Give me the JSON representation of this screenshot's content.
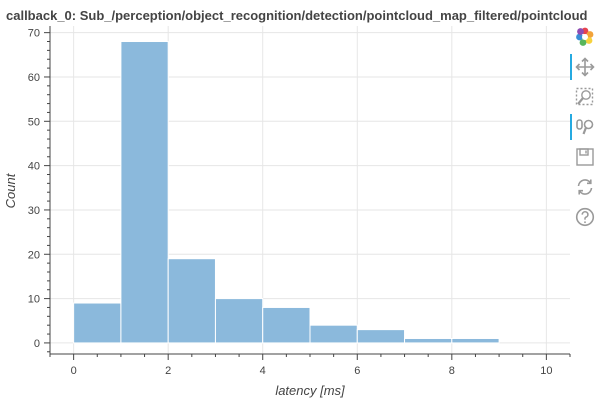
{
  "chart_data": {
    "type": "bar",
    "title": "callback_0: Sub_/perception/object_recognition/detection/pointcloud_map_filtered/pointcloud",
    "xlabel": "latency [ms]",
    "ylabel": "Count",
    "xlim": [
      -0.5,
      10.5
    ],
    "ylim": [
      -2.5,
      71.5
    ],
    "xticks": [
      0,
      2,
      4,
      6,
      8,
      10
    ],
    "yticks": [
      0,
      10,
      20,
      30,
      40,
      50,
      60,
      70
    ],
    "bins": [
      {
        "x0": 0,
        "x1": 1,
        "count": 9
      },
      {
        "x0": 1,
        "x1": 2,
        "count": 68
      },
      {
        "x0": 2,
        "x1": 3,
        "count": 19
      },
      {
        "x0": 3,
        "x1": 4,
        "count": 10
      },
      {
        "x0": 4,
        "x1": 5,
        "count": 8
      },
      {
        "x0": 5,
        "x1": 6,
        "count": 4
      },
      {
        "x0": 6,
        "x1": 7,
        "count": 3
      },
      {
        "x0": 7,
        "x1": 8,
        "count": 1
      },
      {
        "x0": 8,
        "x1": 9,
        "count": 1
      }
    ],
    "bar_color": "#8bb9dc",
    "grid": true,
    "legend": "none"
  },
  "toolbar": {
    "tools": [
      {
        "name": "bokeh-logo-icon",
        "interactable": false,
        "active": false
      },
      {
        "name": "pan-tool-icon",
        "interactable": true,
        "active": true
      },
      {
        "name": "box-zoom-tool-icon",
        "interactable": true,
        "active": false
      },
      {
        "name": "wheel-zoom-tool-icon",
        "interactable": true,
        "active": true
      },
      {
        "name": "save-tool-icon",
        "interactable": true,
        "active": false
      },
      {
        "name": "reset-tool-icon",
        "interactable": true,
        "active": false
      },
      {
        "name": "help-tool-icon",
        "interactable": true,
        "active": false
      }
    ],
    "accent_color": "#26aae1"
  }
}
